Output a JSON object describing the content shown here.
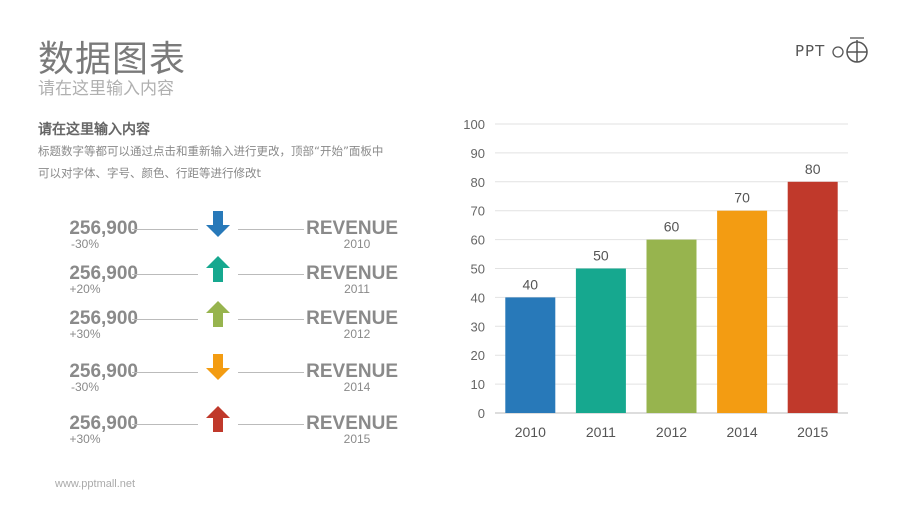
{
  "header": {
    "title": "数据图表",
    "subtitle": "请在这里输入内容",
    "logo_text": "PPT"
  },
  "section": {
    "heading": "请在这里输入内容",
    "body": "标题数字等都可以通过点击和重新输入进行更改，顶部“开始”面板中可以对字体、字号、颜色、行距等进行修改t"
  },
  "rows": [
    {
      "value": "256,900",
      "change": "-30%",
      "direction": "down",
      "color": "#2879b9",
      "label": "REVENUE",
      "year": "2010"
    },
    {
      "value": "256,900",
      "change": "+20%",
      "direction": "up",
      "color": "#16a88f",
      "label": "REVENUE",
      "year": "2011"
    },
    {
      "value": "256,900",
      "change": "+30%",
      "direction": "up",
      "color": "#97b44e",
      "label": "REVENUE",
      "year": "2012"
    },
    {
      "value": "256,900",
      "change": "-30%",
      "direction": "down",
      "color": "#f39c12",
      "label": "REVENUE",
      "year": "2014"
    },
    {
      "value": "256,900",
      "change": "+30%",
      "direction": "up",
      "color": "#c0392b",
      "label": "REVENUE",
      "year": "2015"
    }
  ],
  "footer": {
    "url": "www.pptmall.net"
  },
  "chart_data": {
    "type": "bar",
    "categories": [
      "2010",
      "2011",
      "2012",
      "2014",
      "2015"
    ],
    "values": [
      40,
      50,
      60,
      70,
      80
    ],
    "colors": [
      "#2879b9",
      "#16a88f",
      "#97b44e",
      "#f39c12",
      "#c0392b"
    ],
    "ylim": [
      0,
      100
    ],
    "yticks": [
      0,
      10,
      20,
      30,
      40,
      50,
      60,
      70,
      80,
      90,
      100
    ],
    "grid": true,
    "data_labels": true
  }
}
